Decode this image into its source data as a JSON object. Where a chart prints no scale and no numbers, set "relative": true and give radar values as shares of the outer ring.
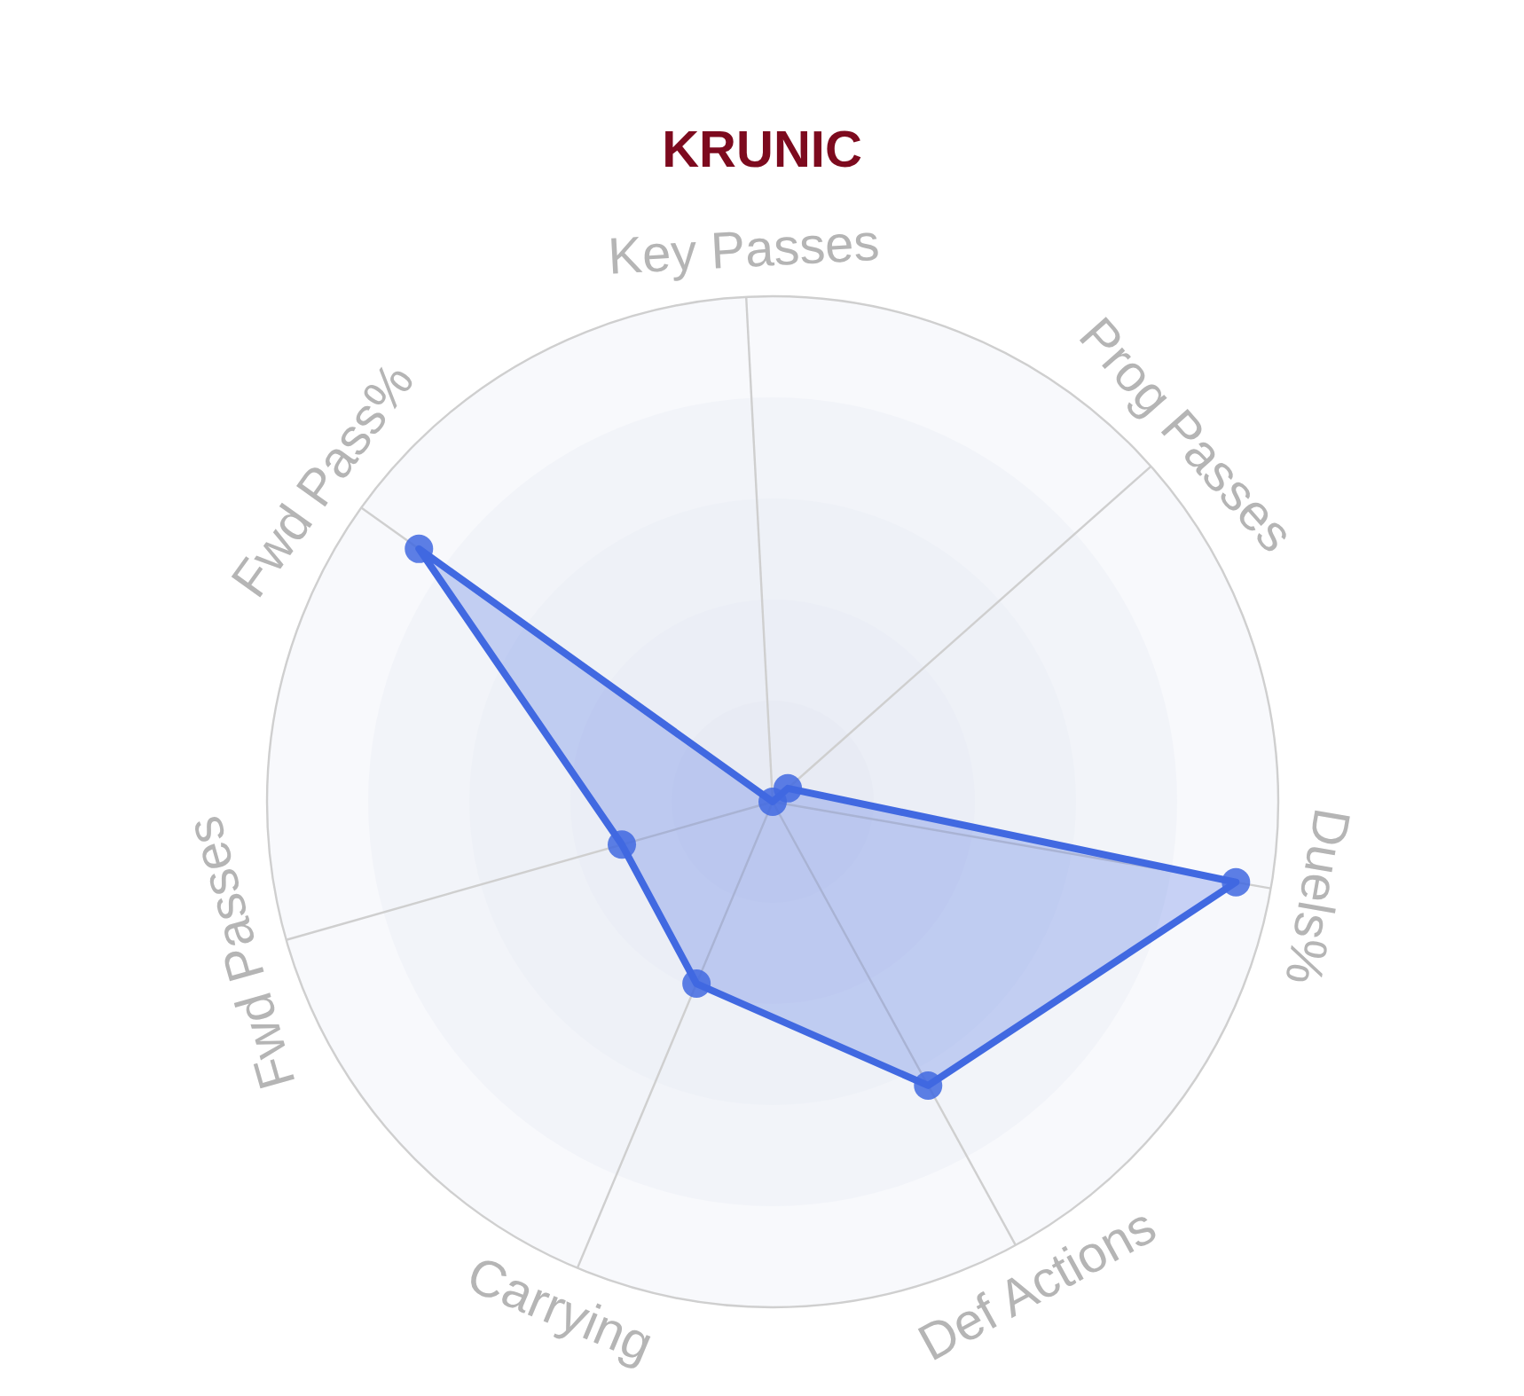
{
  "chart_data": {
    "type": "radar",
    "title": "KRUNIC",
    "categories": [
      "Key Passes",
      "Prog Passes",
      "Duels%",
      "Def Actions",
      "Carrying",
      "Fwd Passes",
      "Fwd Pass%"
    ],
    "relative": true,
    "series": [
      {
        "color": "#4169e1",
        "values": [
          0,
          0.04,
          0.93,
          0.64,
          0.39,
          0.31,
          0.86
        ]
      }
    ],
    "grid": true,
    "marker": "circle",
    "line_style": "solid"
  }
}
